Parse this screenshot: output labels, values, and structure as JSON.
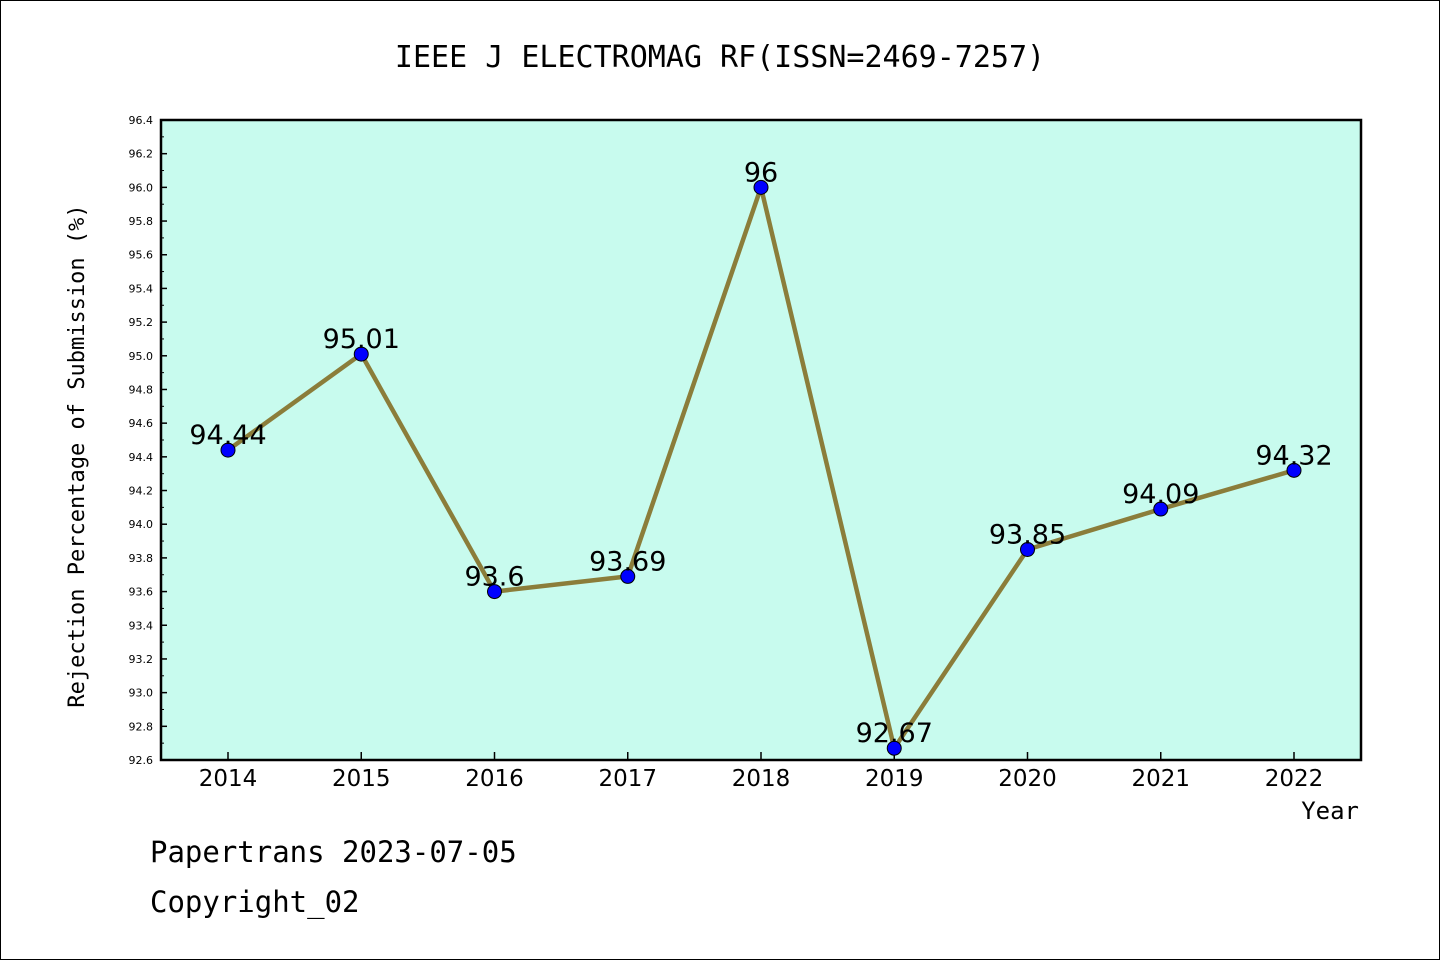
{
  "chart_data": {
    "type": "line",
    "title": "IEEE J ELECTROMAG RF(ISSN=2469-7257)",
    "xlabel": "Year",
    "ylabel": "Rejection Percentage of Submission (%)",
    "categories": [
      "2014",
      "2015",
      "2016",
      "2017",
      "2018",
      "2019",
      "2020",
      "2021",
      "2022"
    ],
    "series": [
      {
        "values": [
          94.44,
          95.01,
          93.6,
          93.69,
          96,
          92.67,
          93.85,
          94.09,
          94.32
        ],
        "labels": [
          "94.44",
          "95.01",
          "93.6",
          "93.69",
          "96",
          "92.67",
          "93.85",
          "94.09",
          "94.32"
        ]
      }
    ],
    "ylim": [
      92.6,
      96.4
    ],
    "yticks": [
      "92.6",
      "92.8",
      "93.0",
      "93.2",
      "93.4",
      "93.6",
      "93.8",
      "94.0",
      "94.2",
      "94.4",
      "94.6",
      "94.8",
      "95.0",
      "95.2",
      "95.4",
      "95.6",
      "95.8",
      "96.0",
      "96.2",
      "96.4"
    ],
    "grid": false,
    "legend": "none",
    "colors": {
      "plot_background": "#c8fbee",
      "line": "#8b7d3a",
      "marker": "#0000ff"
    }
  },
  "footer": {
    "line1": "Papertrans 2023-07-05",
    "line2": "Copyright_02"
  }
}
